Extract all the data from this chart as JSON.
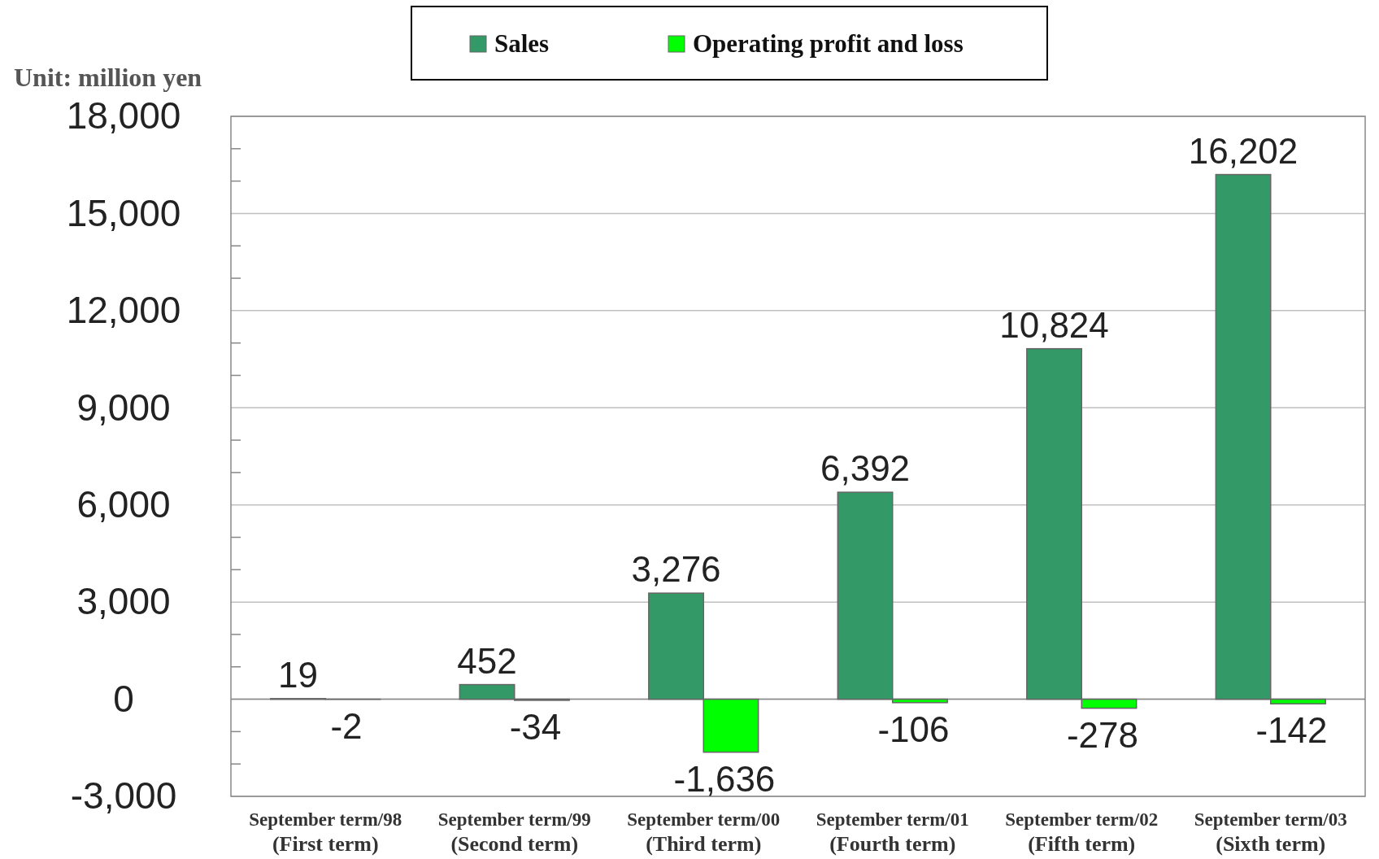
{
  "chart_data": {
    "type": "bar",
    "ylabel": "Unit: million yen",
    "categories": [
      "September term/98\n(First term)",
      "September term/99\n(Second term)",
      "September term/00\n(Third term)",
      "September term/01\n(Fourth term)",
      "September term/02\n(Fifth term)",
      "September term/03\n(Sixth term)"
    ],
    "series": [
      {
        "name": "Sales",
        "color": "#339966",
        "values": [
          19,
          452,
          3276,
          6392,
          10824,
          16202
        ],
        "value_labels": [
          "19",
          "452",
          "3,276",
          "6,392",
          "10,824",
          "16,202"
        ]
      },
      {
        "name": "Operating profit and loss",
        "color": "#00ff00",
        "values": [
          -2,
          -34,
          -1636,
          -106,
          -278,
          -142
        ],
        "value_labels": [
          "-2",
          "-34",
          "-1,636",
          "-106",
          "-278",
          "-142"
        ]
      }
    ],
    "ylim": [
      -3000,
      18000
    ],
    "yticks": [
      {
        "value": -3000,
        "label": "-3,000"
      },
      {
        "value": -2000,
        "label": null
      },
      {
        "value": -1000,
        "label": null
      },
      0,
      {
        "value": 1000,
        "label": null
      },
      {
        "value": 2000,
        "label": null
      },
      {
        "value": 3000,
        "label": "3,000"
      },
      {
        "value": 4000,
        "label": null
      },
      {
        "value": 5000,
        "label": null
      },
      {
        "value": 6000,
        "label": "6,000"
      },
      {
        "value": 7000,
        "label": null
      },
      {
        "value": 8000,
        "label": null
      },
      {
        "value": 9000,
        "label": "9,000"
      },
      {
        "value": 10000,
        "label": null
      },
      {
        "value": 11000,
        "label": null
      },
      {
        "value": 12000,
        "label": "12,000"
      },
      {
        "value": 13000,
        "label": null
      },
      {
        "value": 14000,
        "label": null
      },
      {
        "value": 15000,
        "label": "15,000"
      },
      {
        "value": 16000,
        "label": null
      },
      {
        "value": 17000,
        "label": null
      },
      {
        "value": 18000,
        "label": "18,000"
      }
    ],
    "grid": "y",
    "legend": "top"
  }
}
